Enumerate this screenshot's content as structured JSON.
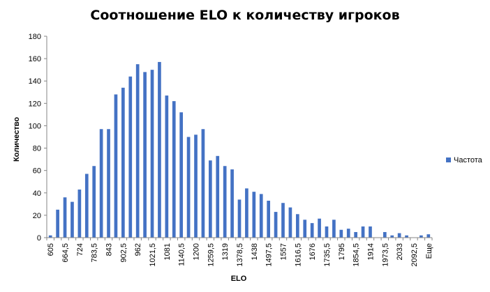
{
  "chart_data": {
    "type": "bar",
    "title": "Соотношение ELO к количеству игроков",
    "xlabel": "ELO",
    "ylabel": "Количество",
    "ylim": [
      0,
      180
    ],
    "yticks": [
      0,
      20,
      40,
      60,
      80,
      100,
      120,
      140,
      160,
      180
    ],
    "grid": false,
    "legend_position": "right",
    "colors": {
      "bar": "#4472c4",
      "axis": "#868686"
    },
    "categories": [
      "605",
      "",
      "664,5",
      "",
      "724",
      "",
      "783,5",
      "",
      "843",
      "",
      "902,5",
      "",
      "962",
      "",
      "1021,5",
      "",
      "1081",
      "",
      "1140,5",
      "",
      "1200",
      "",
      "1259,5",
      "",
      "1319",
      "",
      "1378,5",
      "",
      "1438",
      "",
      "1497,5",
      "",
      "1557",
      "",
      "1616,5",
      "",
      "1676",
      "",
      "1735,5",
      "",
      "1795",
      "",
      "1854,5",
      "",
      "1914",
      "",
      "1973,5",
      "",
      "2033",
      "",
      "2092,5",
      "",
      "Еще"
    ],
    "series": [
      {
        "name": "Частота",
        "values": [
          2,
          25,
          36,
          32,
          43,
          57,
          64,
          97,
          97,
          128,
          134,
          144,
          155,
          148,
          150,
          157,
          127,
          122,
          112,
          90,
          92,
          97,
          69,
          73,
          64,
          61,
          34,
          44,
          41,
          39,
          33,
          23,
          31,
          27,
          21,
          16,
          13,
          17,
          10,
          16,
          7,
          8,
          5,
          10,
          10,
          0,
          5,
          2,
          4,
          2,
          0,
          2,
          3
        ]
      }
    ]
  }
}
